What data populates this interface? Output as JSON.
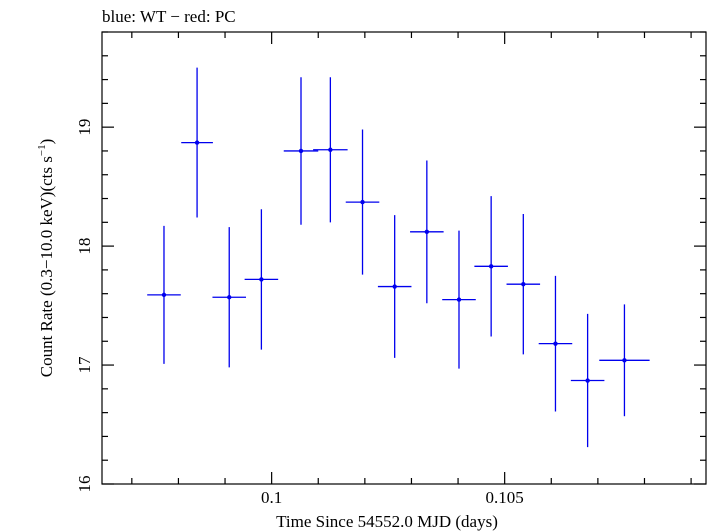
{
  "chart_data": {
    "type": "scatter",
    "title": "blue: WT − red: PC",
    "xlabel": "Time Since 54552.0 MJD (days)",
    "ylabel_main": "Count Rate (0.3−10.0 keV)(cts s",
    "ylabel_sup": "−1",
    "ylabel_end": ")",
    "xlim": [
      0.09636,
      0.10932
    ],
    "ylim": [
      16,
      19.8
    ],
    "x_ticks": [
      {
        "value": 0.1,
        "label": "0.1"
      },
      {
        "value": 0.105,
        "label": "0.105"
      }
    ],
    "y_ticks": [
      {
        "value": 16,
        "label": "16"
      },
      {
        "value": 17,
        "label": "17"
      },
      {
        "value": 18,
        "label": "18"
      },
      {
        "value": 19,
        "label": "19"
      }
    ],
    "series": [
      {
        "name": "WT",
        "color": "#0000ee",
        "points": [
          {
            "x": 0.09769,
            "xerr": 0.00036,
            "y": 17.59,
            "yerr": 0.58
          },
          {
            "x": 0.0984,
            "xerr": 0.00034,
            "y": 18.87,
            "yerr": 0.63
          },
          {
            "x": 0.09909,
            "xerr": 0.00036,
            "y": 17.57,
            "yerr": 0.59
          },
          {
            "x": 0.09978,
            "xerr": 0.00036,
            "y": 17.72,
            "yerr": 0.59
          },
          {
            "x": 0.10063,
            "xerr": 0.00037,
            "y": 18.8,
            "yerr": 0.62
          },
          {
            "x": 0.10126,
            "xerr": 0.00037,
            "y": 18.81,
            "yerr": 0.61
          },
          {
            "x": 0.10195,
            "xerr": 0.00036,
            "y": 18.37,
            "yerr": 0.61
          },
          {
            "x": 0.10264,
            "xerr": 0.00036,
            "y": 17.66,
            "yerr": 0.6
          },
          {
            "x": 0.10333,
            "xerr": 0.00036,
            "y": 18.12,
            "yerr": 0.6
          },
          {
            "x": 0.10402,
            "xerr": 0.00036,
            "y": 17.55,
            "yerr": 0.58
          },
          {
            "x": 0.10471,
            "xerr": 0.00036,
            "y": 17.83,
            "yerr": 0.59
          },
          {
            "x": 0.1054,
            "xerr": 0.00036,
            "y": 17.68,
            "yerr": 0.59
          },
          {
            "x": 0.10609,
            "xerr": 0.00036,
            "y": 17.18,
            "yerr": 0.57
          },
          {
            "x": 0.10678,
            "xerr": 0.00036,
            "y": 16.87,
            "yerr": 0.56
          },
          {
            "x": 0.10757,
            "xerr": 0.00054,
            "y": 17.04,
            "yerr": 0.47
          }
        ]
      }
    ]
  }
}
